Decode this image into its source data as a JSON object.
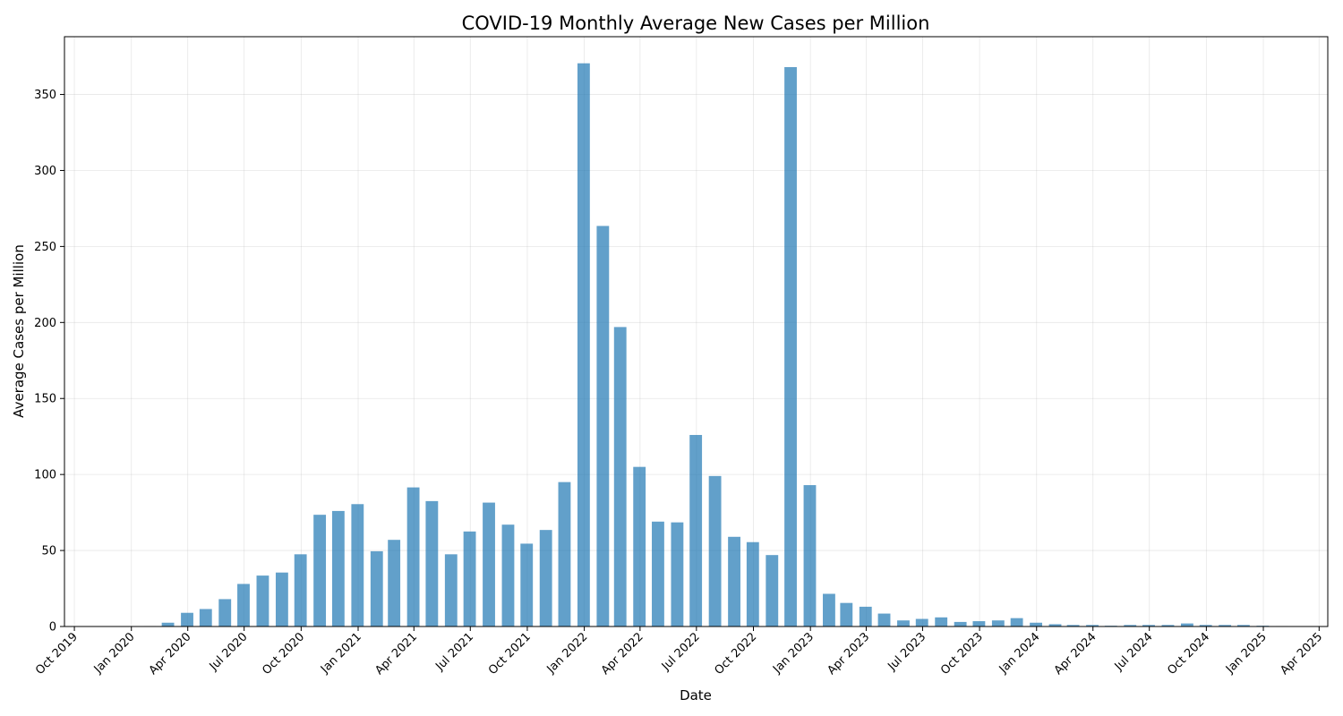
{
  "chart_data": {
    "type": "bar",
    "title": "COVID-19 Monthly Average New Cases per Million",
    "xlabel": "Date",
    "ylabel": "Average Cases per Million",
    "grid": true,
    "bar_color": "#1f77b4",
    "bar_opacity": 0.7,
    "x_ticks": [
      {
        "date": "2019-10-01",
        "label": "Oct 2019"
      },
      {
        "date": "2020-01-01",
        "label": "Jan 2020"
      },
      {
        "date": "2020-04-01",
        "label": "Apr 2020"
      },
      {
        "date": "2020-07-01",
        "label": "Jul 2020"
      },
      {
        "date": "2020-10-01",
        "label": "Oct 2020"
      },
      {
        "date": "2021-01-01",
        "label": "Jan 2021"
      },
      {
        "date": "2021-04-01",
        "label": "Apr 2021"
      },
      {
        "date": "2021-07-01",
        "label": "Jul 2021"
      },
      {
        "date": "2021-10-01",
        "label": "Oct 2021"
      },
      {
        "date": "2022-01-01",
        "label": "Jan 2022"
      },
      {
        "date": "2022-04-01",
        "label": "Apr 2022"
      },
      {
        "date": "2022-07-01",
        "label": "Jul 2022"
      },
      {
        "date": "2022-10-01",
        "label": "Oct 2022"
      },
      {
        "date": "2023-01-01",
        "label": "Jan 2023"
      },
      {
        "date": "2023-04-01",
        "label": "Apr 2023"
      },
      {
        "date": "2023-07-01",
        "label": "Jul 2023"
      },
      {
        "date": "2023-10-01",
        "label": "Oct 2023"
      },
      {
        "date": "2024-01-01",
        "label": "Jan 2024"
      },
      {
        "date": "2024-04-01",
        "label": "Apr 2024"
      },
      {
        "date": "2024-07-01",
        "label": "Jul 2024"
      },
      {
        "date": "2024-10-01",
        "label": "Oct 2024"
      },
      {
        "date": "2025-01-01",
        "label": "Jan 2025"
      },
      {
        "date": "2025-04-01",
        "label": "Apr 2025"
      }
    ],
    "y_ticks": [
      0,
      50,
      100,
      150,
      200,
      250,
      300,
      350
    ],
    "xlim": [
      "2019-09-15",
      "2025-04-15"
    ],
    "ylim": [
      0,
      388
    ],
    "data": [
      {
        "date": "2019-12-31",
        "value": 0.1
      },
      {
        "date": "2020-01-31",
        "value": 0.3
      },
      {
        "date": "2020-02-29",
        "value": 2.5
      },
      {
        "date": "2020-03-31",
        "value": 9.0
      },
      {
        "date": "2020-04-30",
        "value": 11.5
      },
      {
        "date": "2020-05-31",
        "value": 18.0
      },
      {
        "date": "2020-06-30",
        "value": 28.0
      },
      {
        "date": "2020-07-31",
        "value": 33.5
      },
      {
        "date": "2020-08-31",
        "value": 35.5
      },
      {
        "date": "2020-09-30",
        "value": 47.5
      },
      {
        "date": "2020-10-31",
        "value": 73.5
      },
      {
        "date": "2020-11-30",
        "value": 76.0
      },
      {
        "date": "2020-12-31",
        "value": 80.5
      },
      {
        "date": "2021-01-31",
        "value": 49.5
      },
      {
        "date": "2021-02-28",
        "value": 57.0
      },
      {
        "date": "2021-03-31",
        "value": 91.5
      },
      {
        "date": "2021-04-30",
        "value": 82.5
      },
      {
        "date": "2021-05-31",
        "value": 47.5
      },
      {
        "date": "2021-06-30",
        "value": 62.5
      },
      {
        "date": "2021-07-31",
        "value": 81.5
      },
      {
        "date": "2021-08-31",
        "value": 67.0
      },
      {
        "date": "2021-09-30",
        "value": 54.5
      },
      {
        "date": "2021-10-31",
        "value": 63.5
      },
      {
        "date": "2021-11-30",
        "value": 95.0
      },
      {
        "date": "2021-12-31",
        "value": 370.5
      },
      {
        "date": "2022-01-31",
        "value": 263.5
      },
      {
        "date": "2022-02-28",
        "value": 197.0
      },
      {
        "date": "2022-03-31",
        "value": 105.0
      },
      {
        "date": "2022-04-30",
        "value": 69.0
      },
      {
        "date": "2022-05-31",
        "value": 68.5
      },
      {
        "date": "2022-06-30",
        "value": 126.0
      },
      {
        "date": "2022-07-31",
        "value": 99.0
      },
      {
        "date": "2022-08-31",
        "value": 59.0
      },
      {
        "date": "2022-09-30",
        "value": 55.5
      },
      {
        "date": "2022-10-31",
        "value": 47.0
      },
      {
        "date": "2022-11-30",
        "value": 368.0
      },
      {
        "date": "2022-12-31",
        "value": 93.0
      },
      {
        "date": "2023-01-31",
        "value": 21.5
      },
      {
        "date": "2023-02-28",
        "value": 15.5
      },
      {
        "date": "2023-03-31",
        "value": 13.0
      },
      {
        "date": "2023-04-30",
        "value": 8.5
      },
      {
        "date": "2023-05-31",
        "value": 4.0
      },
      {
        "date": "2023-06-30",
        "value": 5.0
      },
      {
        "date": "2023-07-31",
        "value": 6.0
      },
      {
        "date": "2023-08-31",
        "value": 3.0
      },
      {
        "date": "2023-09-30",
        "value": 3.5
      },
      {
        "date": "2023-10-31",
        "value": 4.0
      },
      {
        "date": "2023-11-30",
        "value": 5.5
      },
      {
        "date": "2023-12-31",
        "value": 2.5
      },
      {
        "date": "2024-01-31",
        "value": 1.5
      },
      {
        "date": "2024-02-29",
        "value": 1.0
      },
      {
        "date": "2024-03-31",
        "value": 1.0
      },
      {
        "date": "2024-04-30",
        "value": 0.5
      },
      {
        "date": "2024-05-31",
        "value": 1.0
      },
      {
        "date": "2024-06-30",
        "value": 1.0
      },
      {
        "date": "2024-07-31",
        "value": 1.0
      },
      {
        "date": "2024-08-31",
        "value": 2.0
      },
      {
        "date": "2024-09-30",
        "value": 1.0
      },
      {
        "date": "2024-10-31",
        "value": 1.0
      },
      {
        "date": "2024-11-30",
        "value": 1.0
      },
      {
        "date": "2024-12-31",
        "value": 0.5
      },
      {
        "date": "2025-01-31",
        "value": 0.3
      },
      {
        "date": "2025-02-28",
        "value": 0.0
      }
    ]
  }
}
